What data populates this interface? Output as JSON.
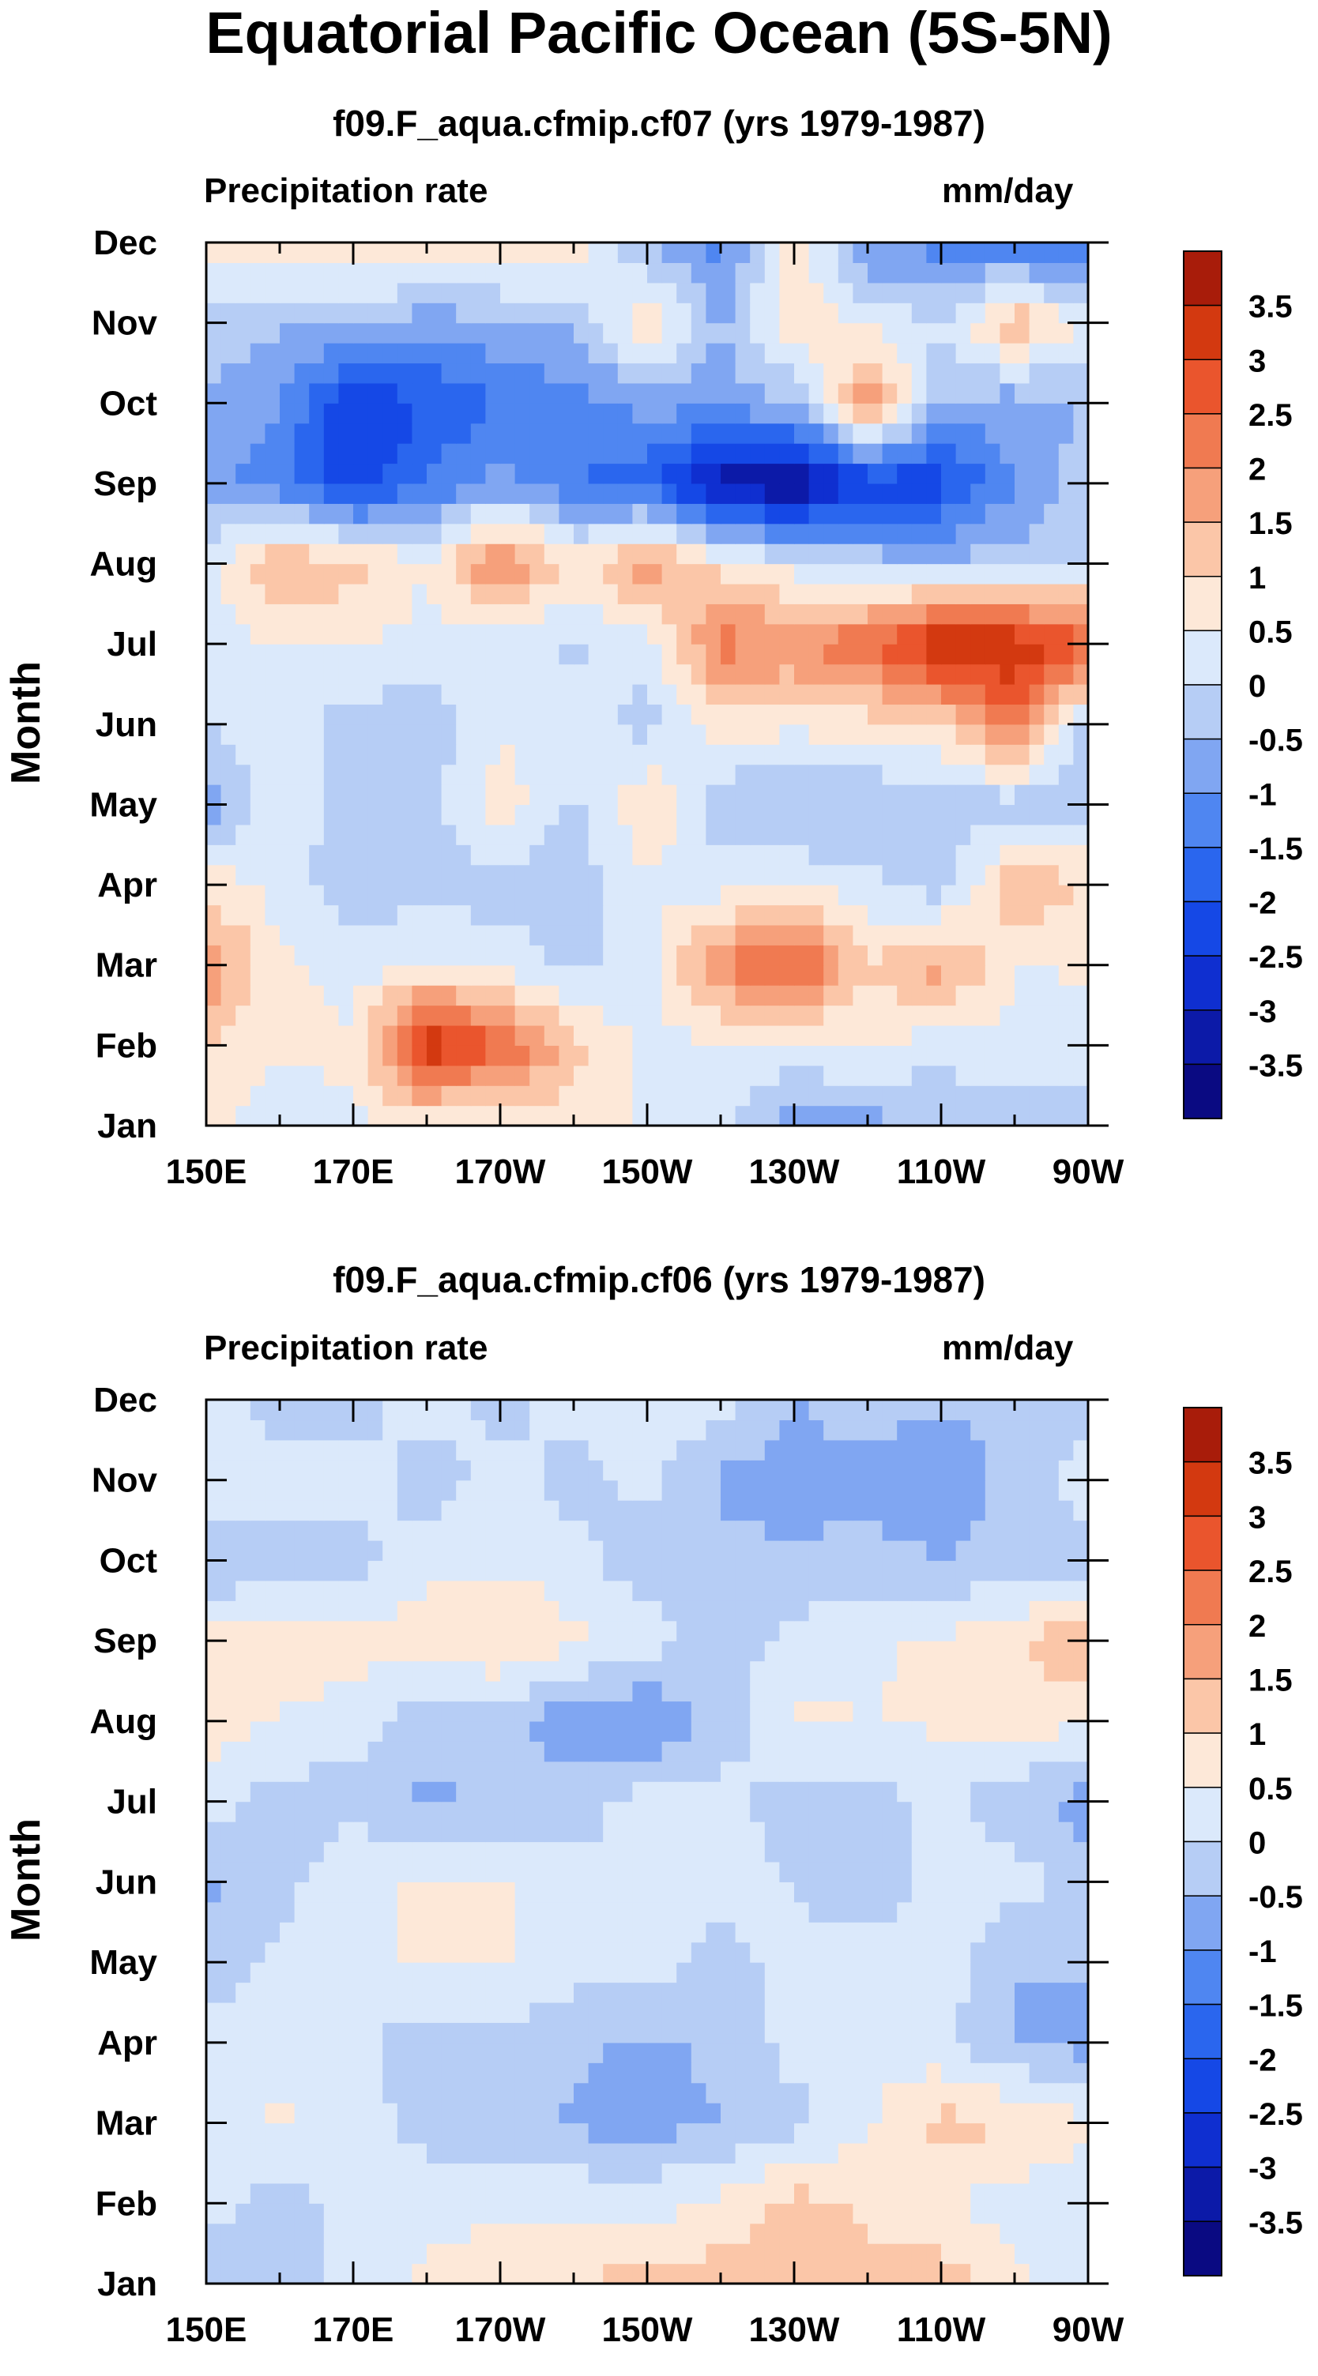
{
  "figure": {
    "title": "Equatorial Pacific Ocean (5S-5N)"
  },
  "chart_data": [
    {
      "type": "heatmap",
      "title": "f09.F_aqua.cfmip.cf07 (yrs 1979-1987)",
      "left_label": "Precipitation rate",
      "right_label": "mm/day",
      "ylabel": "Month",
      "xlabel": "",
      "x_ticks": [
        "150E",
        "170E",
        "170W",
        "150W",
        "130W",
        "110W",
        "90W"
      ],
      "y_ticks": [
        "Jan",
        "Feb",
        "Mar",
        "Apr",
        "May",
        "Jun",
        "Jul",
        "Aug",
        "Sep",
        "Oct",
        "Nov",
        "Dec"
      ],
      "xlim": [
        150,
        270
      ],
      "ylim": [
        1,
        12
      ],
      "colorbar_labels": [
        "3.5",
        "3",
        "2.5",
        "2",
        "1.5",
        "1",
        "0.5",
        "0",
        "-0.5",
        "-1",
        "-1.5",
        "-2",
        "-2.5",
        "-3",
        "-3.5"
      ],
      "x_grid": [
        150,
        160,
        170,
        180,
        190,
        200,
        210,
        220,
        230,
        240,
        250,
        260,
        270
      ],
      "values": [
        [
          0.6,
          0.2,
          0.4,
          0.5,
          0.3,
          0.8,
          0.4,
          0.2,
          -0.8,
          -0.7,
          -0.5,
          -0.3,
          -0.2
        ],
        [
          1.0,
          0.6,
          0.6,
          3.5,
          2.7,
          1.2,
          0.3,
          0.4,
          0.3,
          0.6,
          0.2,
          0.5,
          0.2
        ],
        [
          2.0,
          0.6,
          0.3,
          0.5,
          0.4,
          -0.2,
          0.3,
          2.0,
          2.8,
          1.0,
          1.8,
          0.4,
          0.6
        ],
        [
          0.8,
          0.3,
          -0.4,
          -0.2,
          -0.3,
          -0.3,
          0.4,
          0.3,
          0.4,
          0.2,
          -0.3,
          1.5,
          1.0
        ],
        [
          -0.8,
          0.4,
          -0.3,
          -0.2,
          0.8,
          -0.1,
          1.0,
          -0.4,
          -0.6,
          -0.5,
          -0.4,
          -0.3,
          -0.4
        ],
        [
          0.0,
          0.3,
          -0.3,
          -0.3,
          0.4,
          0.2,
          -0.2,
          0.8,
          0.6,
          0.8,
          0.9,
          2.4,
          -0.4
        ],
        [
          0.2,
          0.5,
          0.6,
          0.3,
          0.2,
          -0.1,
          0.3,
          2.2,
          2.0,
          2.5,
          3.6,
          3.5,
          2.8
        ],
        [
          0.3,
          1.5,
          1.2,
          0.5,
          2.2,
          0.8,
          1.8,
          0.8,
          0.3,
          -0.2,
          -0.3,
          -0.3,
          -0.1
        ],
        [
          -0.8,
          -1.3,
          -2.4,
          -1.5,
          -0.8,
          -1.5,
          -1.8,
          -3.3,
          -3.6,
          -2.5,
          -2.3,
          -1.0,
          -0.2
        ],
        [
          -0.5,
          -1.0,
          -2.5,
          -2.0,
          -1.5,
          -1.2,
          -0.8,
          -0.8,
          -0.5,
          2.0,
          -0.5,
          -0.8,
          -0.5
        ],
        [
          -0.3,
          -0.4,
          -0.5,
          -0.8,
          -0.6,
          -0.4,
          1.0,
          -0.6,
          1.0,
          0.4,
          0.0,
          1.5,
          0.4
        ],
        [
          0.8,
          1.0,
          1.0,
          1.2,
          1.0,
          0.8,
          -0.6,
          -1.2,
          0.8,
          -1.0,
          -1.2,
          -1.5,
          -1.8
        ]
      ]
    },
    {
      "type": "heatmap",
      "title": "f09.F_aqua.cfmip.cf06 (yrs 1979-1987)",
      "left_label": "Precipitation rate",
      "right_label": "mm/day",
      "ylabel": "Month",
      "xlabel": "",
      "x_ticks": [
        "150E",
        "170E",
        "170W",
        "150W",
        "130W",
        "110W",
        "90W"
      ],
      "y_ticks": [
        "Jan",
        "Feb",
        "Mar",
        "Apr",
        "May",
        "Jun",
        "Jul",
        "Aug",
        "Sep",
        "Oct",
        "Nov",
        "Dec"
      ],
      "xlim": [
        150,
        270
      ],
      "ylim": [
        1,
        12
      ],
      "colorbar_labels": [
        "3.5",
        "3",
        "2.5",
        "2",
        "1.5",
        "1",
        "0.5",
        "0",
        "-0.5",
        "-1",
        "-1.5",
        "-2",
        "-2.5",
        "-3",
        "-3.5"
      ],
      "x_grid": [
        150,
        160,
        170,
        180,
        190,
        200,
        210,
        220,
        230,
        240,
        250,
        260,
        270
      ],
      "values": [
        [
          -0.5,
          -0.3,
          0.3,
          0.6,
          0.8,
          1.0,
          1.2,
          1.3,
          1.4,
          1.2,
          1.3,
          0.6,
          0.2
        ],
        [
          0.3,
          -0.3,
          0.2,
          0.3,
          0.4,
          0.4,
          0.3,
          0.6,
          1.2,
          0.9,
          0.5,
          0.3,
          0.2
        ],
        [
          0.3,
          0.6,
          0.3,
          -0.2,
          -0.3,
          -0.6,
          -0.7,
          -0.5,
          -0.2,
          0.4,
          1.2,
          1.0,
          0.6
        ],
        [
          0.4,
          0.2,
          0.1,
          -0.3,
          -0.2,
          -0.4,
          -0.6,
          -0.4,
          0.2,
          0.4,
          0.1,
          -0.5,
          -0.7
        ],
        [
          -0.4,
          0.2,
          0.3,
          0.6,
          0.6,
          0.2,
          0.2,
          -0.2,
          0.2,
          0.4,
          0.3,
          -0.5,
          -0.4
        ],
        [
          -0.6,
          -0.2,
          0.4,
          0.6,
          0.6,
          0.1,
          0.2,
          0.2,
          0.0,
          -0.6,
          0.3,
          0.2,
          -0.2
        ],
        [
          0.2,
          -0.2,
          -0.2,
          -0.6,
          -0.4,
          -0.2,
          0.2,
          0.2,
          -0.3,
          -0.2,
          0.1,
          -0.3,
          -0.8
        ],
        [
          0.8,
          0.4,
          0.2,
          -0.3,
          -0.4,
          -0.8,
          -1.1,
          -0.3,
          0.6,
          0.5,
          0.6,
          0.8,
          0.6
        ],
        [
          0.6,
          1.0,
          0.7,
          0.8,
          1.1,
          0.6,
          0.3,
          -0.3,
          0.2,
          0.4,
          0.6,
          0.9,
          1.5
        ],
        [
          -0.5,
          -0.3,
          -0.2,
          0.3,
          0.4,
          0.2,
          -0.4,
          -0.3,
          -0.4,
          -0.3,
          -0.5,
          -0.3,
          -0.2
        ],
        [
          0.3,
          0.2,
          0.3,
          -0.3,
          0.2,
          -0.2,
          0.2,
          -0.6,
          -0.8,
          -0.7,
          -1.0,
          -0.3,
          0.2
        ],
        [
          0.3,
          -0.3,
          -0.3,
          0.4,
          -0.2,
          0.2,
          0.3,
          0.2,
          -0.5,
          -0.2,
          -0.4,
          -0.3,
          -0.2
        ]
      ]
    }
  ]
}
